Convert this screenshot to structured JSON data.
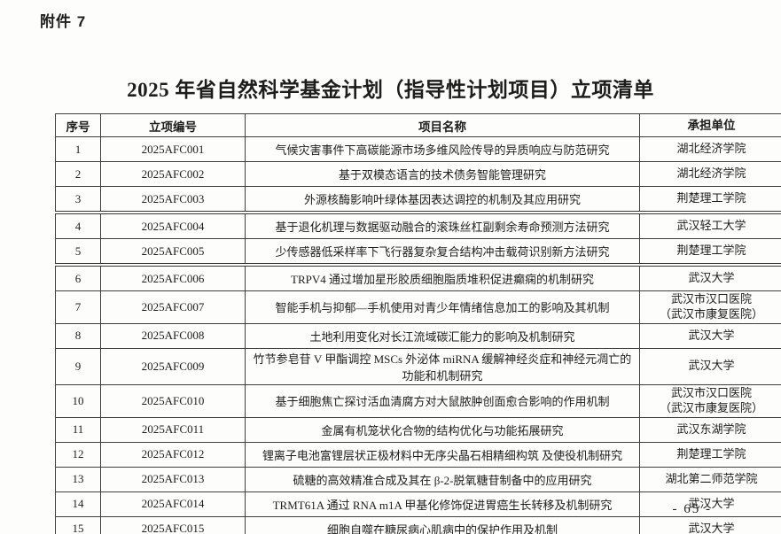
{
  "attachment_label": "附件 7",
  "title": "2025 年省自然科学基金计划（指导性计划项目）立项清单",
  "table": {
    "headers": [
      "序号",
      "立项编号",
      "项目名称",
      "承担单位"
    ],
    "rows": [
      {
        "no": "1",
        "code": "2025AFC001",
        "name": "气候灾害事件下高碳能源市场多维风险传导的异质响应与防范研究",
        "unit": "湖北经济学院"
      },
      {
        "no": "2",
        "code": "2025AFC002",
        "name": "基于双模态语言的技术债务智能管理研究",
        "unit": "湖北经济学院"
      },
      {
        "no": "3",
        "code": "2025AFC003",
        "name": "外源核酶影响叶绿体基因表达调控的机制及其应用研究",
        "unit": "荆楚理工学院"
      },
      {
        "no": "4",
        "code": "2025AFC004",
        "name": "基于退化机理与数据驱动融合的滚珠丝杠副剩余寿命预测方法研究",
        "unit": "武汉轻工大学"
      },
      {
        "no": "5",
        "code": "2025AFC005",
        "name": "少传感器低采样率下飞行器复杂复合结构冲击载荷识别新方法研究",
        "unit": "荆楚理工学院"
      },
      {
        "no": "6",
        "code": "2025AFC006",
        "name": "TRPV4 通过增加星形胶质细胞脂质堆积促进癫痫的机制研究",
        "unit": "武汉大学"
      },
      {
        "no": "7",
        "code": "2025AFC007",
        "name": "智能手机与抑郁—手机使用对青少年情绪信息加工的影响及其机制",
        "unit": "武汉市汉口医院\n（武汉市康复医院）"
      },
      {
        "no": "8",
        "code": "2025AFC008",
        "name": "土地利用变化对长江流域碳汇能力的影响及机制研究",
        "unit": "武汉大学"
      },
      {
        "no": "9",
        "code": "2025AFC009",
        "name": "竹节参皂苷 V 甲酯调控 MSCs 外泌体 miRNA 缓解神经炎症和神经元凋亡的功能和机制研究",
        "unit": "武汉大学"
      },
      {
        "no": "10",
        "code": "2025AFC010",
        "name": "基于细胞焦亡探讨活血清腐方对大鼠脓肿创面愈合影响的作用机制",
        "unit": "武汉市汉口医院\n（武汉市康复医院）"
      },
      {
        "no": "11",
        "code": "2025AFC011",
        "name": "金属有机笼状化合物的结构优化与功能拓展研究",
        "unit": "武汉东湖学院"
      },
      {
        "no": "12",
        "code": "2025AFC012",
        "name": "锂离子电池富锂层状正极材料中无序尖晶石相精细构筑 及使役机制研究",
        "unit": "荆楚理工学院"
      },
      {
        "no": "13",
        "code": "2025AFC013",
        "name": "硫糖的高效精准合成及其在 β-2-脱氧糖苷制备中的应用研究",
        "unit": "湖北第二师范学院"
      },
      {
        "no": "14",
        "code": "2025AFC014",
        "name": "TRMT61A 通过 RNA m1A 甲基化修饰促进胃癌生长转移及机制研究",
        "unit": "武汉大学"
      },
      {
        "no": "15",
        "code": "2025AFC015",
        "name": "细胞自噬在糖尿病心肌病中的保护作用及机制",
        "unit": "武汉大学"
      }
    ]
  },
  "page_number": "- 65 -"
}
